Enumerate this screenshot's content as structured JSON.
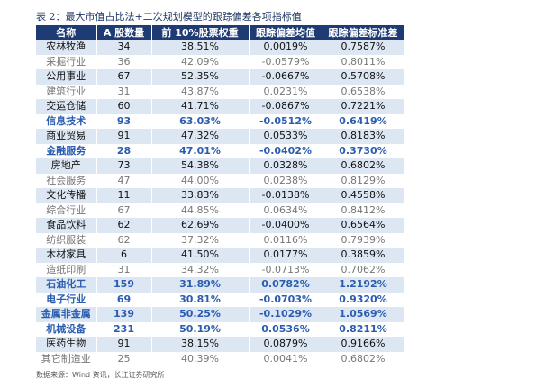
{
  "title": "表 2：最大市值占比法+二次规划模型的跟踪偏差各项指标值",
  "table": {
    "header": [
      "名称",
      "A 股数量",
      "前 10%股票权重",
      "跟踪偏差均值",
      "跟踪偏差标准差"
    ],
    "rows": [
      [
        "农林牧渔",
        "34",
        "38.51%",
        "0.0019%",
        "0.7587%"
      ],
      [
        "采掘行业",
        "36",
        "42.09%",
        "-0.0579%",
        "0.8011%"
      ],
      [
        "公用事业",
        "67",
        "52.35%",
        "-0.0667%",
        "0.5708%"
      ],
      [
        "建筑行业",
        "31",
        "43.87%",
        "0.0231%",
        "0.6538%"
      ],
      [
        "交运仓储",
        "60",
        "41.71%",
        "-0.0867%",
        "0.7221%"
      ],
      [
        "信息技术",
        "93",
        "63.03%",
        "-0.0512%",
        "0.6419%"
      ],
      [
        "商业贸易",
        "91",
        "47.32%",
        "0.0533%",
        "0.8183%"
      ],
      [
        "金融服务",
        "28",
        "47.01%",
        "-0.0402%",
        "0.3730%"
      ],
      [
        "房地产",
        "73",
        "54.38%",
        "0.0328%",
        "0.6802%"
      ],
      [
        "社会服务",
        "47",
        "44.00%",
        "0.0238%",
        "0.8129%"
      ],
      [
        "文化传播",
        "11",
        "33.83%",
        "-0.0138%",
        "0.4558%"
      ],
      [
        "综合行业",
        "67",
        "44.85%",
        "0.0634%",
        "0.8412%"
      ],
      [
        "食品饮料",
        "62",
        "62.69%",
        "-0.0400%",
        "0.6564%"
      ],
      [
        "纺织服装",
        "62",
        "37.32%",
        "0.0116%",
        "0.7939%"
      ],
      [
        "木材家具",
        "6",
        "41.50%",
        "0.0177%",
        "0.3859%"
      ],
      [
        "造纸印刷",
        "31",
        "34.32%",
        "-0.0713%",
        "0.7062%"
      ],
      [
        "石油化工",
        "159",
        "31.89%",
        "0.0782%",
        "1.2192%"
      ],
      [
        "电子行业",
        "69",
        "30.81%",
        "-0.0703%",
        "0.9320%"
      ],
      [
        "金属非金属",
        "139",
        "50.25%",
        "-0.1029%",
        "1.0569%"
      ],
      [
        "机械设备",
        "231",
        "50.19%",
        "0.0536%",
        "0.8211%"
      ],
      [
        "医药生物",
        "91",
        "38.15%",
        "0.0879%",
        "0.9166%"
      ],
      [
        "其它制造业",
        "25",
        "40.39%",
        "0.0041%",
        "0.6802%"
      ]
    ],
    "row_colors": [
      "#111111",
      "#777777",
      "#111111",
      "#777777",
      "#111111",
      "#2a5db0",
      "#111111",
      "#2a5db0",
      "#111111",
      "#777777",
      "#111111",
      "#777777",
      "#111111",
      "#777777",
      "#111111",
      "#777777",
      "#2a5db0",
      "#2a5db0",
      "#2a5db0",
      "#2a5db0",
      "#111111",
      "#777777"
    ]
  },
  "source": "数据来源：Wind 资讯，长江证券研究所"
}
